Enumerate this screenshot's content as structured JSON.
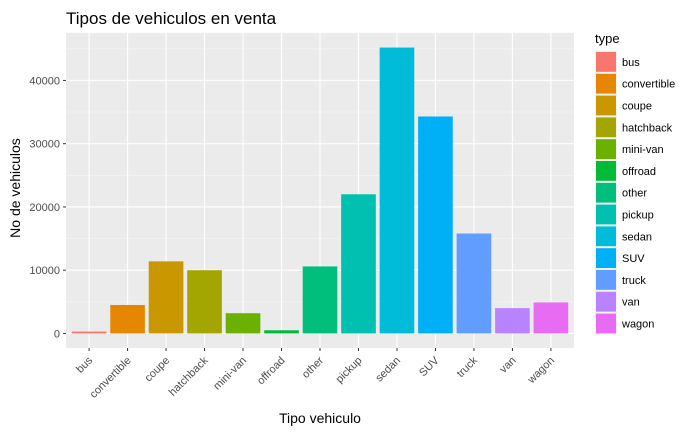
{
  "chart_data": {
    "type": "bar",
    "title": "Tipos de vehiculos en venta",
    "xlabel": "Tipo vehiculo",
    "ylabel": "No de vehiculos",
    "categories": [
      "bus",
      "convertible",
      "coupe",
      "hatchback",
      "mini-van",
      "offroad",
      "other",
      "pickup",
      "sedan",
      "SUV",
      "truck",
      "van",
      "wagon"
    ],
    "values": [
      300,
      4500,
      11400,
      10000,
      3200,
      500,
      10600,
      22000,
      45200,
      34300,
      15800,
      4000,
      4900
    ],
    "colors": [
      "#F8766D",
      "#E58700",
      "#C99800",
      "#A3A500",
      "#6BB100",
      "#00BA38",
      "#00BF7D",
      "#00C0AF",
      "#00BCD8",
      "#00B0F6",
      "#619CFF",
      "#B983FF",
      "#E76BF3",
      "#FD61D1",
      "#FF67A4"
    ],
    "ylim": [
      -2300,
      47500
    ],
    "yticks": [
      0,
      10000,
      20000,
      30000,
      40000
    ],
    "grid": true,
    "legend": {
      "title": "type",
      "position": "right",
      "items": [
        "bus",
        "convertible",
        "coupe",
        "hatchback",
        "mini-van",
        "offroad",
        "other",
        "pickup",
        "sedan",
        "SUV",
        "truck",
        "van",
        "wagon"
      ]
    }
  }
}
